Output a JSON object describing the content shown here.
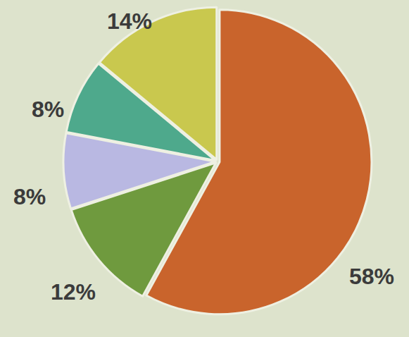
{
  "chart_data": {
    "type": "pie",
    "values": [
      58,
      12,
      8,
      8,
      14
    ],
    "value_labels": [
      "58%",
      "12%",
      "8%",
      "8%",
      "14%"
    ],
    "colors": [
      "#c9642c",
      "#6f9a3e",
      "#b9b8e2",
      "#4ea98c",
      "#c9c84e"
    ],
    "data_labels": true
  }
}
